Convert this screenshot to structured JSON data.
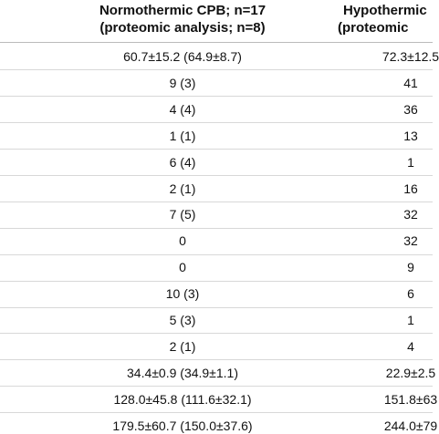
{
  "header": {
    "columns": [
      {
        "title": "Normothermic CPB; n=17",
        "subtitle": "(proteomic analysis; n=8)"
      },
      {
        "title": "Hypothermic",
        "subtitle": "(proteomic"
      }
    ]
  },
  "table": {
    "rows": [
      [
        "60.7±15.2 (64.9±8.7)",
        "72.3±12.5"
      ],
      [
        "9 (3)",
        "41"
      ],
      [
        "4 (4)",
        "36"
      ],
      [
        "1 (1)",
        "13"
      ],
      [
        "6 (4)",
        "1"
      ],
      [
        "2 (1)",
        "16"
      ],
      [
        "7 (5)",
        "32"
      ],
      [
        "0",
        "32"
      ],
      [
        "0",
        "9"
      ],
      [
        "10 (3)",
        "6"
      ],
      [
        "5 (3)",
        "1"
      ],
      [
        "2 (1)",
        "4"
      ],
      [
        "34.4±0.9 (34.9±1.1)",
        "22.9±2.5"
      ],
      [
        "128.0±45.8 (111.6±32.1)",
        "151.8±63"
      ],
      [
        "179.5±60.7 (150.0±37.6)",
        "244.0±79"
      ]
    ]
  }
}
